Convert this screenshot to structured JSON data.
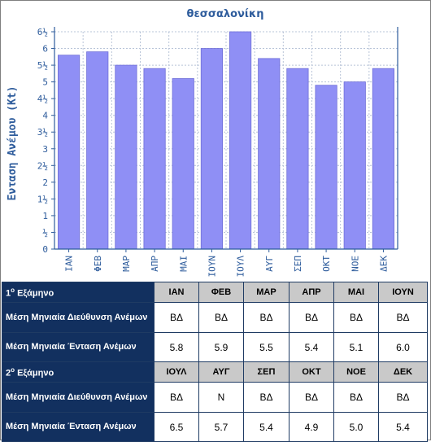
{
  "chart_data": {
    "type": "bar",
    "title": "θεσσαλονίκη",
    "ylabel": "Ενταση Ανέμου (Kt)",
    "xlabel": "",
    "categories": [
      "ΙΑΝ",
      "ΦΕΒ",
      "ΜΑΡ",
      "ΑΠΡ",
      "ΜΑΙ",
      "ΙΟΥΝ",
      "ΙΟΥΛ",
      "ΑΥΓ",
      "ΣΕΠ",
      "ΟΚΤ",
      "ΝΟΕ",
      "ΔΕΚ"
    ],
    "values": [
      5.8,
      5.9,
      5.5,
      5.4,
      5.1,
      6.0,
      6.5,
      5.7,
      5.4,
      4.9,
      5.0,
      5.4
    ],
    "ylim": [
      0,
      6.5
    ],
    "yticks": [
      "0",
      "½",
      "1",
      "1½",
      "2",
      "2½",
      "3",
      "3½",
      "4",
      "4½",
      "5",
      "5½",
      "6",
      "6½"
    ],
    "grid": true,
    "bar_color": "#8f8ff5"
  },
  "table": {
    "half1": {
      "title": "1",
      "title_sup": "ο",
      "title_rest": " Εξάμηνο",
      "months": [
        "ΙΑΝ",
        "ΦΕΒ",
        "ΜΑΡ",
        "ΑΠΡ",
        "ΜΑΙ",
        "ΙΟΥΝ"
      ],
      "dir_label": "Μέση Μηνιαία Διεύθυνση Ανέμων",
      "dir": [
        "ΒΔ",
        "ΒΔ",
        "ΒΔ",
        "ΒΔ",
        "ΒΔ",
        "ΒΔ"
      ],
      "int_label": "Μέση Μηνιαία Ένταση Ανέμων",
      "int": [
        "5.8",
        "5.9",
        "5.5",
        "5.4",
        "5.1",
        "6.0"
      ]
    },
    "half2": {
      "title": "2",
      "title_sup": "ο",
      "title_rest": " Εξάμηνο",
      "months": [
        "ΙΟΥΛ",
        "ΑΥΓ",
        "ΣΕΠ",
        "ΟΚΤ",
        "ΝΟΕ",
        "ΔΕΚ"
      ],
      "dir_label": "Μέση Μηνιαία Διεύθυνση Ανέμων",
      "dir": [
        "ΒΔ",
        "Ν",
        "ΒΔ",
        "ΒΔ",
        "ΒΔ",
        "ΒΔ"
      ],
      "int_label": "Μέση Μηνιαία Ένταση Ανέμων",
      "int": [
        "6.5",
        "5.7",
        "5.4",
        "4.9",
        "5.0",
        "5.4"
      ]
    }
  }
}
